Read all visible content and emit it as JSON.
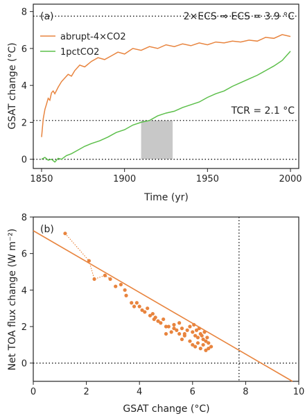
{
  "colors": {
    "abrupt": "#e8843e",
    "onepct": "#5cbf4a",
    "shade": "#c8c8c8",
    "axis": "#222222"
  },
  "chart_data": [
    {
      "type": "line",
      "panel_label": "(a)",
      "xlabel": "Time (yr)",
      "ylabel": "GSAT change (°C)",
      "xlim": [
        1845,
        2005
      ],
      "ylim": [
        -0.5,
        8.4
      ],
      "xticks": [
        1850,
        1900,
        1950,
        2000
      ],
      "yticks": [
        0,
        2,
        4,
        6,
        8
      ],
      "hlines": [
        {
          "y": 7.75,
          "label": "2×ECS ⇒ ECS = 3.9 °C"
        },
        {
          "y": 2.1,
          "label": "TCR = 2.1 °C"
        },
        {
          "y": 0
        }
      ],
      "shaded_span": {
        "x0": 1910,
        "x1": 1929,
        "y0": 0,
        "y1": 2.1
      },
      "legend_position": "upper-left",
      "series": [
        {
          "name": "abrupt-4×CO2",
          "color_key": "abrupt",
          "x": [
            1850,
            1851,
            1852,
            1853,
            1854,
            1855,
            1856,
            1857,
            1858,
            1860,
            1862,
            1864,
            1866,
            1868,
            1870,
            1873,
            1876,
            1880,
            1884,
            1888,
            1892,
            1896,
            1900,
            1905,
            1910,
            1915,
            1920,
            1925,
            1930,
            1935,
            1940,
            1945,
            1950,
            1955,
            1960,
            1965,
            1970,
            1975,
            1980,
            1985,
            1990,
            1995,
            2000
          ],
          "y": [
            1.2,
            2.2,
            2.7,
            3.0,
            3.3,
            3.2,
            3.6,
            3.7,
            3.55,
            3.9,
            4.2,
            4.4,
            4.6,
            4.5,
            4.8,
            5.1,
            5.0,
            5.3,
            5.5,
            5.4,
            5.6,
            5.8,
            5.7,
            6.0,
            5.9,
            6.1,
            6.0,
            6.2,
            6.1,
            6.25,
            6.15,
            6.3,
            6.2,
            6.35,
            6.3,
            6.4,
            6.35,
            6.45,
            6.4,
            6.6,
            6.55,
            6.75,
            6.65
          ]
        },
        {
          "name": "1pctCO2",
          "color_key": "onepct",
          "x": [
            1850,
            1852,
            1854,
            1856,
            1858,
            1860,
            1862,
            1865,
            1868,
            1872,
            1876,
            1880,
            1885,
            1890,
            1895,
            1900,
            1905,
            1910,
            1915,
            1920,
            1925,
            1930,
            1935,
            1940,
            1945,
            1950,
            1955,
            1960,
            1965,
            1970,
            1975,
            1980,
            1985,
            1990,
            1995,
            2000
          ],
          "y": [
            0.0,
            0.1,
            -0.05,
            0.0,
            -0.15,
            0.05,
            0.0,
            0.2,
            0.3,
            0.5,
            0.7,
            0.85,
            1.0,
            1.2,
            1.45,
            1.6,
            1.85,
            2.0,
            2.1,
            2.35,
            2.5,
            2.6,
            2.8,
            2.95,
            3.1,
            3.35,
            3.55,
            3.7,
            3.95,
            4.15,
            4.35,
            4.55,
            4.8,
            5.05,
            5.35,
            5.85
          ]
        }
      ]
    },
    {
      "type": "scatter",
      "panel_label": "(b)",
      "xlabel": "GSAT change (°C)",
      "ylabel": "Net TOA flux change (W m⁻²)",
      "xlim": [
        0,
        10
      ],
      "ylim": [
        -1,
        8
      ],
      "xticks": [
        0,
        2,
        4,
        6,
        8,
        10
      ],
      "yticks": [
        0,
        2,
        4,
        6,
        8
      ],
      "hline_y": 0,
      "vline_x": 7.75,
      "regression": {
        "x": [
          0,
          10
        ],
        "y": [
          7.25,
          -1.2
        ]
      },
      "series": [
        {
          "name": "abrupt-4×CO2",
          "color_key": "abrupt",
          "x": [
            1.2,
            2.1,
            2.3,
            2.7,
            2.9,
            3.1,
            3.3,
            3.45,
            3.5,
            3.7,
            3.8,
            3.9,
            4.0,
            4.1,
            4.2,
            4.3,
            4.4,
            4.5,
            4.55,
            4.6,
            4.7,
            4.8,
            4.9,
            5.0,
            5.0,
            5.1,
            5.2,
            5.3,
            5.4,
            5.5,
            5.6,
            5.6,
            5.7,
            5.8,
            5.9,
            6.0,
            6.0,
            6.1,
            6.1,
            6.2,
            6.2,
            6.3,
            6.3,
            6.4,
            6.4,
            6.5,
            6.5,
            6.6,
            6.6,
            6.7,
            6.25,
            6.35,
            6.45,
            6.55,
            6.05,
            6.15,
            5.9,
            5.7,
            5.5,
            5.3
          ],
          "y": [
            7.1,
            5.6,
            4.6,
            4.8,
            4.6,
            4.2,
            4.3,
            4.0,
            3.7,
            3.3,
            3.1,
            3.3,
            3.1,
            2.9,
            2.8,
            3.0,
            2.6,
            2.7,
            2.4,
            2.5,
            2.3,
            2.2,
            2.4,
            2.0,
            1.6,
            2.0,
            1.7,
            1.9,
            1.8,
            1.6,
            1.9,
            1.3,
            1.5,
            1.8,
            1.2,
            1.7,
            1.0,
            1.5,
            0.9,
            1.4,
            1.1,
            1.6,
            0.8,
            1.3,
            1.0,
            1.2,
            0.7,
            1.1,
            0.8,
            0.9,
            1.9,
            1.5,
            1.7,
            1.4,
            2.1,
            1.8,
            2.0,
            1.6,
            2.2,
            2.1
          ]
        }
      ]
    }
  ]
}
